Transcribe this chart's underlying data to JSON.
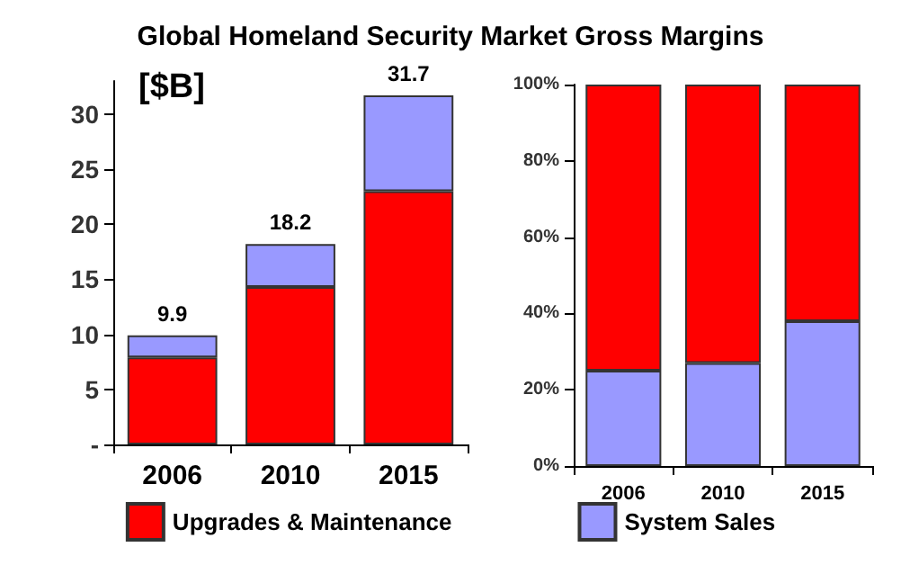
{
  "chart_data": [
    {
      "type": "bar",
      "title": "Global Homeland Security Market Gross Margins",
      "annotations": [
        "[$B]"
      ],
      "categories": [
        "2006",
        "2010",
        "2015"
      ],
      "stacked": true,
      "series": [
        {
          "name": "Upgrades & Maintenance",
          "color": "#ff0000",
          "values": [
            7.9,
            14.3,
            23.0
          ]
        },
        {
          "name": "System Sales",
          "color": "#9999ff",
          "values": [
            2.0,
            3.9,
            8.7
          ]
        }
      ],
      "totals": [
        "9.9",
        "18.2",
        "31.7"
      ],
      "ylim": [
        0,
        33
      ],
      "yticks": [
        {
          "value": 0,
          "label": "-"
        },
        5,
        10,
        15,
        20,
        25,
        30
      ],
      "grid": false,
      "legend": "bottom"
    },
    {
      "type": "bar",
      "categories": [
        "2006",
        "2010",
        "2015"
      ],
      "stacked": true,
      "series": [
        {
          "color": "#9999ff",
          "values": [
            25,
            27,
            38
          ]
        },
        {
          "color": "#ff0000",
          "values": [
            75,
            73,
            62
          ]
        }
      ],
      "ylim": [
        0,
        100
      ],
      "yticks": [
        {
          "value": 0,
          "label": "0%"
        },
        {
          "value": 20,
          "label": "20%"
        },
        {
          "value": 40,
          "label": "40%"
        },
        {
          "value": 60,
          "label": "60%"
        },
        {
          "value": 80,
          "label": "80%"
        },
        {
          "value": 100,
          "label": "100%"
        }
      ],
      "grid": false,
      "legend": false
    }
  ]
}
